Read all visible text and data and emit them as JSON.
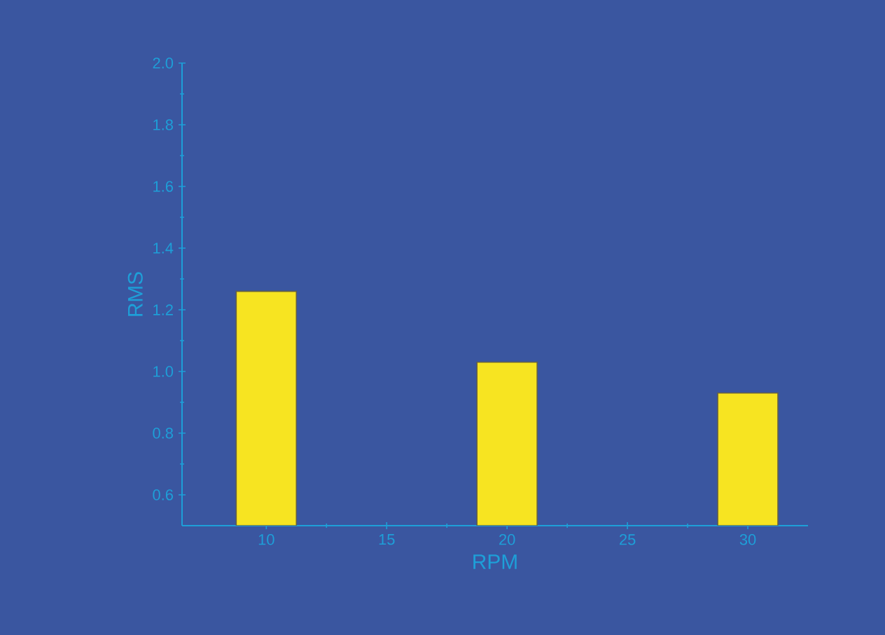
{
  "chart_data": {
    "type": "bar",
    "xlabel": "RPM",
    "ylabel": "RMS",
    "x": [
      10,
      20,
      30
    ],
    "values": [
      1.26,
      1.03,
      0.93
    ],
    "color": "#f7e421",
    "xlim": [
      6.5,
      32.5
    ],
    "xticks": [
      10,
      15,
      20,
      25,
      30
    ],
    "ylim": [
      0.5,
      2.0
    ],
    "yticks": [
      {
        "value": 0.6,
        "label": "0.6"
      },
      {
        "value": 0.8,
        "label": "0.8"
      },
      {
        "value": 1.0,
        "label": "1.0"
      },
      {
        "value": 1.2,
        "label": "1.2"
      },
      {
        "value": 1.4,
        "label": "1.4"
      },
      {
        "value": 1.6,
        "label": "1.6"
      },
      {
        "value": 1.8,
        "label": "1.8"
      },
      {
        "value": 2.0,
        "label": "2.0"
      }
    ]
  }
}
